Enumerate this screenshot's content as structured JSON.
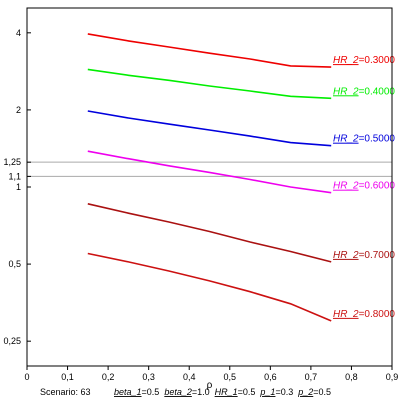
{
  "chart_data": {
    "type": "line",
    "xlabel": "ρ",
    "x_ticks": [
      0,
      0.1,
      0.2,
      0.3,
      0.4,
      0.5,
      0.6,
      0.7,
      0.8,
      0.9
    ],
    "x_tick_labels": [
      "0",
      "0,1",
      "0,2",
      "0,3",
      "0,4",
      "0,5",
      "0,6",
      "0,7",
      "0,8",
      "0,9"
    ],
    "xlim": [
      0,
      0.9
    ],
    "y_scale": "log",
    "ylim": [
      0.2,
      5
    ],
    "y_ticks": [
      0.25,
      0.5,
      1,
      1.1,
      1.25,
      2,
      4
    ],
    "y_tick_labels": [
      "0,25",
      "0,5",
      "1",
      "1,1",
      "1,25",
      "2",
      "4"
    ],
    "reference_lines": [
      1.1,
      1.25
    ],
    "reference_line_color": "#aaaaaa",
    "series": [
      {
        "label_prefix": "HR_2",
        "label_value": "0.3000",
        "color": "#ee0000",
        "x": [
          0.15,
          0.25,
          0.35,
          0.45,
          0.55,
          0.65,
          0.75
        ],
        "y": [
          3.96,
          3.72,
          3.52,
          3.33,
          3.16,
          2.97,
          2.94
        ]
      },
      {
        "label_prefix": "HR_2",
        "label_value": "0.4000",
        "color": "#00ee00",
        "x": [
          0.15,
          0.25,
          0.35,
          0.45,
          0.55,
          0.65,
          0.75
        ],
        "y": [
          2.88,
          2.73,
          2.61,
          2.48,
          2.37,
          2.26,
          2.22
        ]
      },
      {
        "label_prefix": "HR_2",
        "label_value": "0.5000",
        "color": "#0000dd",
        "x": [
          0.15,
          0.25,
          0.35,
          0.45,
          0.55,
          0.65,
          0.75
        ],
        "y": [
          1.98,
          1.86,
          1.76,
          1.67,
          1.58,
          1.49,
          1.45
        ]
      },
      {
        "label_prefix": "HR_2",
        "label_value": "0.6000",
        "color": "#ee00ee",
        "x": [
          0.15,
          0.25,
          0.35,
          0.45,
          0.55,
          0.65,
          0.75
        ],
        "y": [
          1.38,
          1.29,
          1.21,
          1.14,
          1.07,
          1.0,
          0.95
        ]
      },
      {
        "label_prefix": "HR_2",
        "label_value": "0.7000",
        "color": "#aa1111",
        "x": [
          0.15,
          0.25,
          0.35,
          0.45,
          0.55,
          0.65,
          0.75
        ],
        "y": [
          0.86,
          0.79,
          0.73,
          0.67,
          0.61,
          0.56,
          0.51
        ]
      },
      {
        "label_prefix": "HR_2",
        "label_value": "0.8000",
        "color": "#cc1111",
        "x": [
          0.15,
          0.25,
          0.35,
          0.45,
          0.55,
          0.65,
          0.75
        ],
        "y": [
          0.55,
          0.51,
          0.47,
          0.43,
          0.39,
          0.35,
          0.3
        ]
      }
    ]
  },
  "footer": {
    "scenario": "Scenario: 63",
    "params": [
      {
        "name": "beta_1",
        "value": "0.5"
      },
      {
        "name": "beta_2",
        "value": "1.0"
      },
      {
        "name": "HR_1",
        "value": "0.5"
      },
      {
        "name": "p_1",
        "value": "0.3"
      },
      {
        "name": "p_2",
        "value": "0.5"
      }
    ]
  }
}
